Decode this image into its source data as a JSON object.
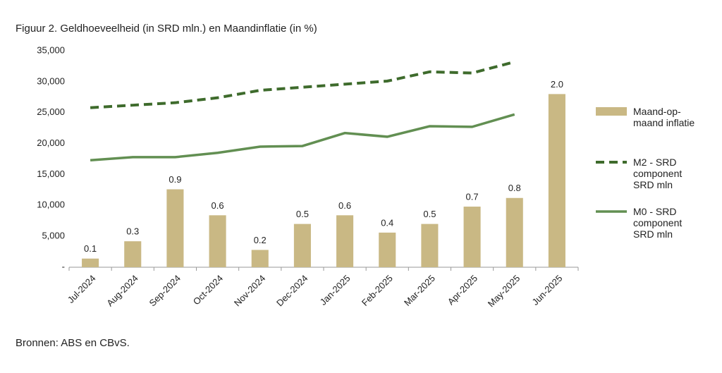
{
  "chart_data": {
    "type": "bar_line",
    "title": "Figuur 2. Geldhoeveelheid (in SRD mln.) en Maandinflatie (in %)",
    "source": "Bronnen: ABS en CBvS.",
    "categories": [
      "Jul-2024",
      "Aug-2024",
      "Sep-2024",
      "Oct-2024",
      "Nov-2024",
      "Dec-2024",
      "Jan-2025",
      "Feb-2025",
      "Mar-2025",
      "Apr-2025",
      "May-2025",
      "Jun-2025"
    ],
    "ylim": [
      0,
      35000
    ],
    "yticks": [
      {
        "value": 0,
        "label": "-"
      },
      {
        "value": 5000,
        "label": "5,000"
      },
      {
        "value": 10000,
        "label": "10,000"
      },
      {
        "value": 15000,
        "label": "15,000"
      },
      {
        "value": 20000,
        "label": "20,000"
      },
      {
        "value": 25000,
        "label": "25,000"
      },
      {
        "value": 30000,
        "label": "30,000"
      },
      {
        "value": 35000,
        "label": "35,000"
      }
    ],
    "y2lim": [
      0,
      2.5
    ],
    "series": [
      {
        "name": "Maand-op-maand inflatie",
        "type": "bar",
        "axis": "y2",
        "color": "#c9b884",
        "values": [
          0.1,
          0.3,
          0.9,
          0.6,
          0.2,
          0.5,
          0.6,
          0.4,
          0.5,
          0.7,
          0.8,
          2.0
        ],
        "value_labels": [
          "0.1",
          "0.3",
          "0.9",
          "0.6",
          "0.2",
          "0.5",
          "0.6",
          "0.4",
          "0.5",
          "0.7",
          "0.8",
          "2.0"
        ]
      },
      {
        "name": "M2 - SRD component SRD mln",
        "type": "line",
        "dashed": true,
        "color": "#3e6b2c",
        "values": [
          25800,
          26200,
          26600,
          27400,
          28600,
          29100,
          29600,
          30100,
          31600,
          31400,
          33200,
          null
        ]
      },
      {
        "name": "M0 - SRD component SRD mln",
        "type": "line",
        "color": "#628f52",
        "values": [
          17300,
          17800,
          17800,
          18500,
          19500,
          19600,
          21700,
          21100,
          22800,
          22700,
          24700,
          null
        ]
      }
    ]
  }
}
